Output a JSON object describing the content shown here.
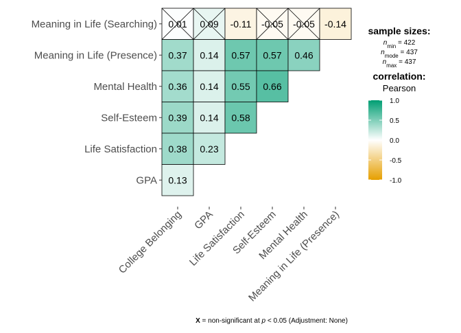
{
  "chart_data": {
    "type": "heatmap",
    "subtype": "lower-triangular correlation matrix",
    "rows_top_to_bottom": [
      "Meaning in Life (Searching)",
      "Meaning in Life (Presence)",
      "Mental Health",
      "Self-Esteem",
      "Life Satisfaction",
      "GPA"
    ],
    "columns_left_to_right": [
      "College Belonging",
      "GPA",
      "Life Satisfaction",
      "Self-Esteem",
      "Mental Health",
      "Meaning in Life (Presence)"
    ],
    "values": [
      [
        0.01,
        0.09,
        -0.11,
        -0.05,
        -0.05,
        -0.14
      ],
      [
        0.37,
        0.14,
        0.57,
        0.57,
        0.46,
        null
      ],
      [
        0.36,
        0.14,
        0.55,
        0.66,
        null,
        null
      ],
      [
        0.39,
        0.14,
        0.58,
        null,
        null,
        null
      ],
      [
        0.38,
        0.23,
        null,
        null,
        null,
        null
      ],
      [
        0.13,
        null,
        null,
        null,
        null,
        null
      ]
    ],
    "labels": [
      [
        "0.01",
        "0.09",
        "-0.11",
        "-0.05",
        "-0.05",
        "-0.14"
      ],
      [
        "0.37",
        "0.14",
        "0.57",
        "0.57",
        "0.46",
        ""
      ],
      [
        "0.36",
        "0.14",
        "0.55",
        "0.66",
        "",
        ""
      ],
      [
        "0.39",
        "0.14",
        "0.58",
        "",
        "",
        ""
      ],
      [
        "0.38",
        "0.23",
        "",
        "",
        "",
        ""
      ],
      [
        "0.13",
        "",
        "",
        "",
        "",
        ""
      ]
    ],
    "nonsignificant": [
      [
        true,
        true,
        false,
        true,
        true,
        false
      ],
      [
        false,
        false,
        false,
        false,
        false,
        false
      ],
      [
        false,
        false,
        false,
        false,
        false,
        false
      ],
      [
        false,
        false,
        false,
        false,
        false,
        false
      ],
      [
        false,
        false,
        false,
        false,
        false,
        false
      ],
      [
        false,
        false,
        false,
        false,
        false,
        false
      ]
    ],
    "color_scale": {
      "low": "#E69F00",
      "mid": "#FFFFFF",
      "high": "#009E73",
      "limits": [
        -1.0,
        1.0
      ],
      "ticks": [
        1.0,
        0.5,
        0.0,
        -0.5,
        -1.0
      ],
      "tick_labels": [
        "1.0",
        "0.5",
        "0.0",
        "-0.5",
        "-1.0"
      ]
    },
    "legend": {
      "sample_sizes_title": "sample sizes:",
      "n_min": {
        "label": "n",
        "sub": "min",
        "value": " = 422"
      },
      "n_mode": {
        "label": "n",
        "sub": "mode",
        "value": " = 437"
      },
      "n_max": {
        "label": "n",
        "sub": "max",
        "value": " = 437"
      },
      "correlation_title": "correlation:",
      "correlation_method": "Pearson",
      "position": "right"
    },
    "caption": {
      "x": "X",
      "text_before_p": " = non-significant at ",
      "p": "p",
      "text_after_p": " < 0.05 (Adjustment: None)"
    }
  }
}
